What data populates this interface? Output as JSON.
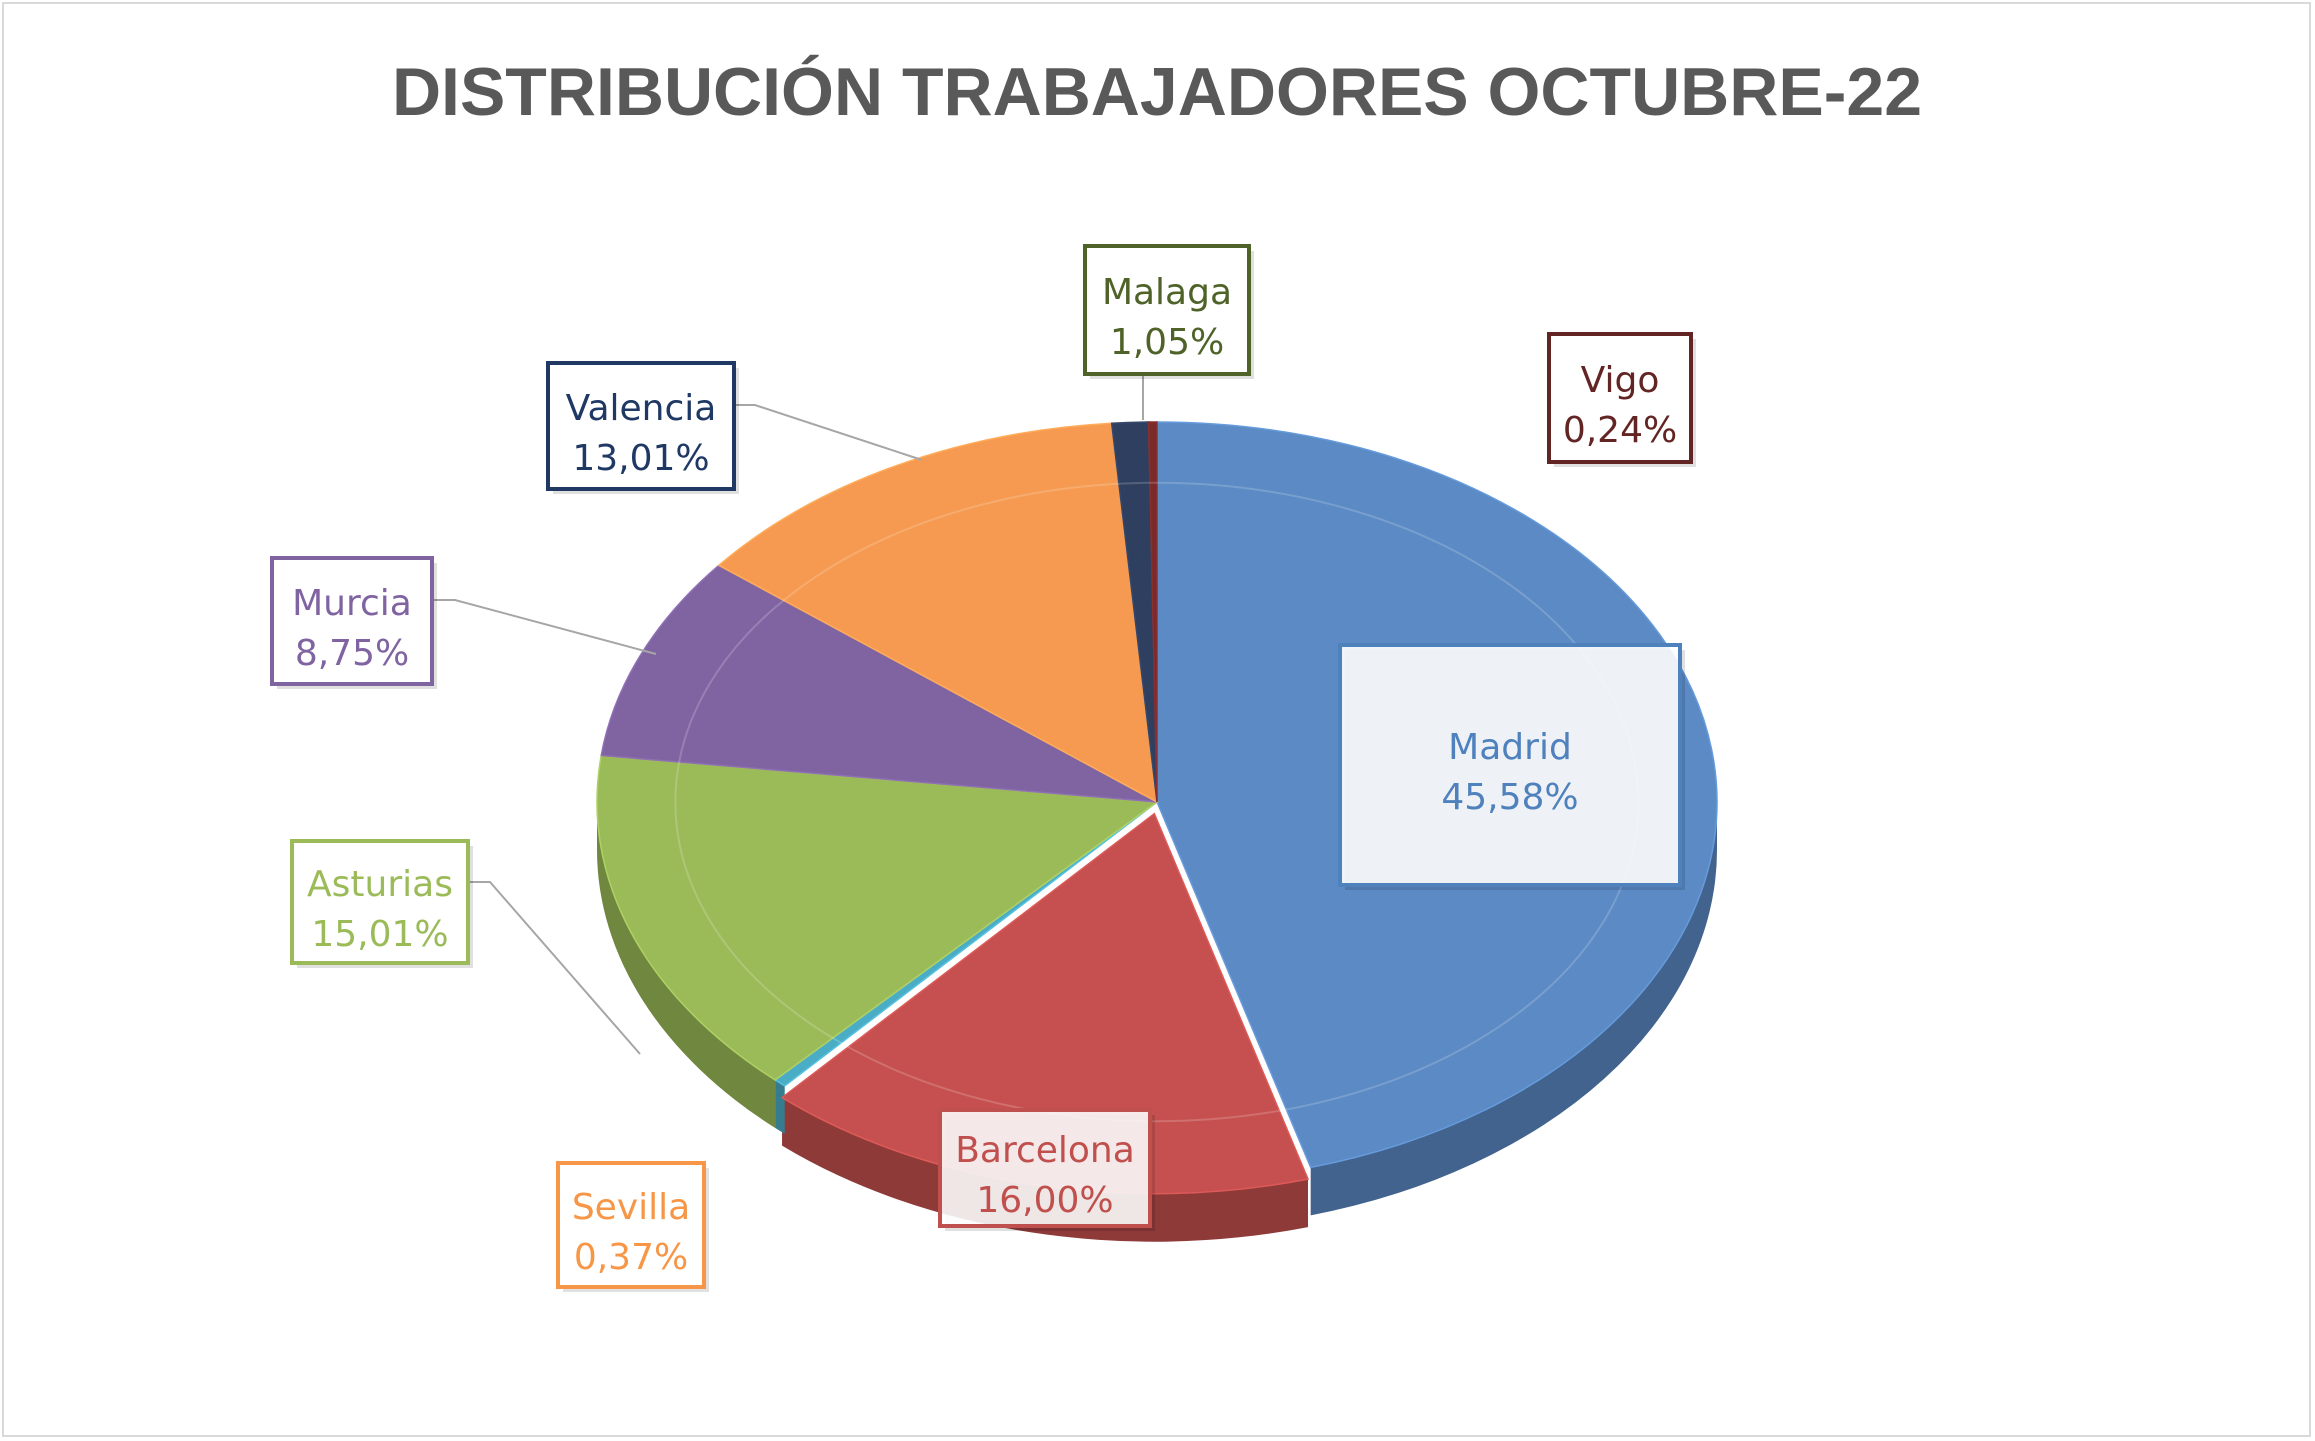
{
  "chart_data": {
    "type": "pie",
    "title": "DISTRIBUCIÓN TRABAJADORES OCTUBRE-22",
    "labels": [
      "Madrid",
      "Barcelona",
      "Sevilla",
      "Asturias",
      "Murcia",
      "Valencia",
      "Malaga",
      "Vigo"
    ],
    "values": [
      45.58,
      16.0,
      0.37,
      15.01,
      8.75,
      13.01,
      1.05,
      0.24
    ],
    "value_labels": [
      "45,58%",
      "16,00%",
      "0,37%",
      "15,01%",
      "8,75%",
      "13,01%",
      "1,05%",
      "0,24%"
    ],
    "colors": [
      "#5b8ac4",
      "#c5504f",
      "#4bacc6",
      "#9bbb59",
      "#8064a2",
      "#f59a50",
      "#2f3f5f",
      "#7b2a2a"
    ],
    "label_colors": [
      "#4f81bd",
      "#c0504d",
      "#f79646",
      "#9bbb59",
      "#8064a2",
      "#1f3864",
      "#4f6228",
      "#632523"
    ],
    "style": "3d-exploded",
    "legend": "none",
    "data_labels": "category-and-percent"
  }
}
